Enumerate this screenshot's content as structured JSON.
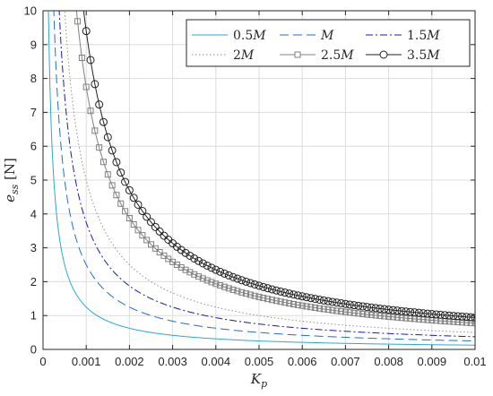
{
  "chart_data": {
    "type": "line",
    "title": "",
    "xlabel": {
      "main": "K",
      "sub": "p"
    },
    "ylabel": {
      "main": "e",
      "sub": "ss",
      "unit": " [N]"
    },
    "xlim": [
      0,
      0.01
    ],
    "ylim": [
      0,
      10
    ],
    "xticks": [
      "0",
      "0.001",
      "0.002",
      "0.003",
      "0.004",
      "0.005",
      "0.006",
      "0.007",
      "0.008",
      "0.009",
      "0.01"
    ],
    "yticks": [
      "0",
      "1",
      "2",
      "3",
      "4",
      "5",
      "6",
      "7",
      "8",
      "9",
      "10"
    ],
    "grid": true,
    "legend_position": "top-right",
    "formula": "e_ss = k / K_p",
    "series": [
      {
        "name": "0.5M",
        "label_prefix": "0.5",
        "label_var": "M",
        "k": 0.00125,
        "color": "#29a8d8",
        "dash": "",
        "marker": "none"
      },
      {
        "name": "M",
        "label_prefix": "",
        "label_var": "M",
        "k": 0.0025,
        "color": "#1e6fd0",
        "dash": "10,5",
        "marker": "none"
      },
      {
        "name": "1.5M",
        "label_prefix": "1.5",
        "label_var": "M",
        "k": 0.00375,
        "color": "#1a1ab0",
        "dash": "8,3,2,3",
        "marker": "none"
      },
      {
        "name": "2M",
        "label_prefix": "2",
        "label_var": "M",
        "k": 0.005,
        "color": "#909090",
        "dash": "1.5,2.5",
        "marker": "none"
      },
      {
        "name": "2.5M",
        "label_prefix": "2.5",
        "label_var": "M",
        "k": 0.00775,
        "color": "#808080",
        "dash": "",
        "marker": "square"
      },
      {
        "name": "3.5M",
        "label_prefix": "3.5",
        "label_var": "M",
        "k": 0.0094,
        "color": "#202020",
        "dash": "",
        "marker": "circle"
      }
    ]
  }
}
